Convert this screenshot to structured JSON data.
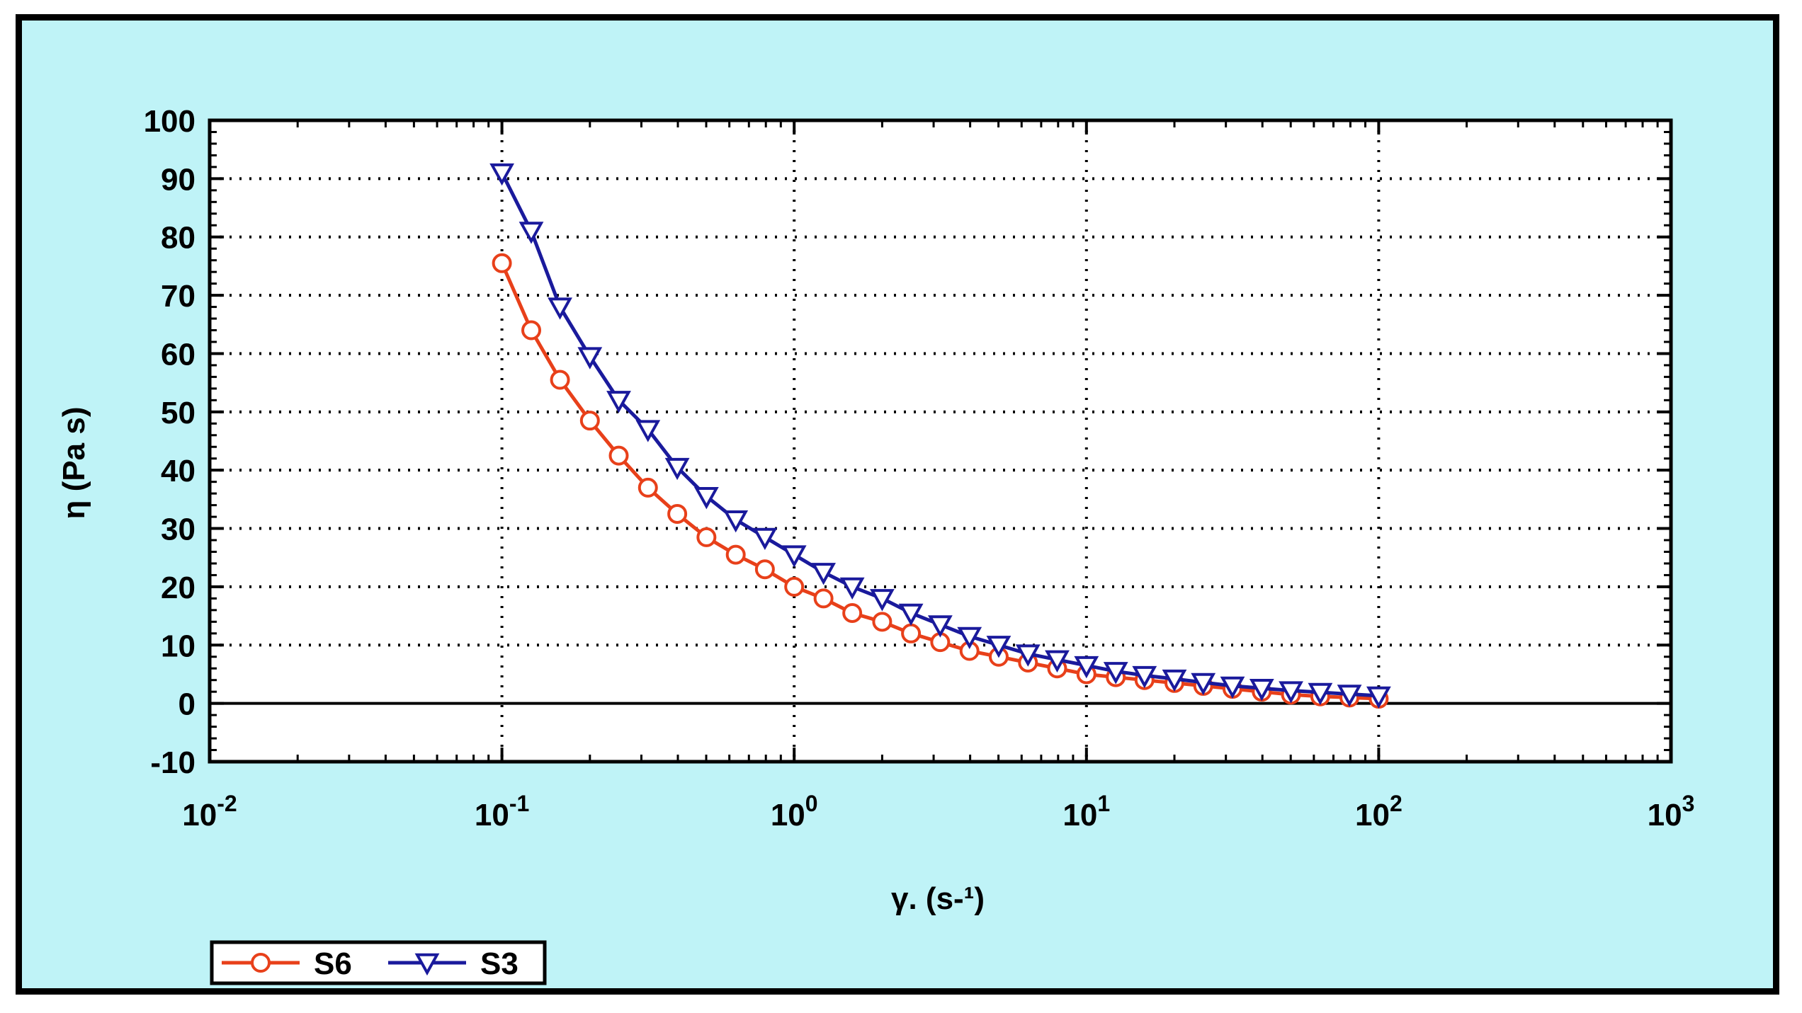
{
  "chart_data": {
    "type": "line",
    "xscale": "log",
    "xlim": [
      0.01,
      1000
    ],
    "ylim": [
      -10,
      100
    ],
    "xlabel": "γ. (s-¹)",
    "ylabel": "η (Pa s)",
    "xticks": [
      {
        "value": 0.01,
        "base": "10",
        "exp": "-2"
      },
      {
        "value": 0.1,
        "base": "10",
        "exp": "-1"
      },
      {
        "value": 1,
        "base": "10",
        "exp": "0"
      },
      {
        "value": 10,
        "base": "10",
        "exp": "1"
      },
      {
        "value": 100,
        "base": "10",
        "exp": "2"
      },
      {
        "value": 1000,
        "base": "10",
        "exp": "3"
      }
    ],
    "yticks": [
      -10,
      0,
      10,
      20,
      30,
      40,
      50,
      60,
      70,
      80,
      90,
      100
    ],
    "grid": true,
    "legend_position": "bottom-left",
    "series": [
      {
        "name": "S6",
        "color": "#e8401a",
        "marker": "circle",
        "x": [
          0.1,
          0.126,
          0.158,
          0.2,
          0.251,
          0.316,
          0.398,
          0.501,
          0.631,
          0.794,
          1,
          1.26,
          1.58,
          2,
          2.51,
          3.16,
          3.98,
          5.01,
          6.31,
          7.94,
          10,
          12.6,
          15.8,
          20,
          25.1,
          31.6,
          39.8,
          50.1,
          63.1,
          79.4,
          100
        ],
        "y": [
          75.5,
          64,
          55.5,
          48.5,
          42.5,
          37,
          32.5,
          28.5,
          25.5,
          23,
          20,
          18,
          15.5,
          14,
          12,
          10.5,
          9,
          8,
          7,
          6,
          5,
          4.5,
          4,
          3.5,
          3,
          2.5,
          2,
          1.5,
          1.2,
          1,
          0.8
        ]
      },
      {
        "name": "S3",
        "color": "#1a1a9c",
        "marker": "triangle-down",
        "x": [
          0.1,
          0.126,
          0.158,
          0.2,
          0.251,
          0.316,
          0.398,
          0.501,
          0.631,
          0.794,
          1,
          1.26,
          1.58,
          2,
          2.51,
          3.16,
          3.98,
          5.01,
          6.31,
          7.94,
          10,
          12.6,
          15.8,
          20,
          25.1,
          31.6,
          39.8,
          50.1,
          63.1,
          79.4,
          100
        ],
        "y": [
          91,
          81,
          68,
          59.5,
          52,
          47,
          40.5,
          35.5,
          31.5,
          28.5,
          25.5,
          22.5,
          20,
          18,
          15.5,
          13.5,
          11.5,
          10,
          8.5,
          7.5,
          6.5,
          5.5,
          4.8,
          4.2,
          3.6,
          3,
          2.6,
          2.2,
          1.9,
          1.6,
          1.3
        ]
      }
    ]
  }
}
